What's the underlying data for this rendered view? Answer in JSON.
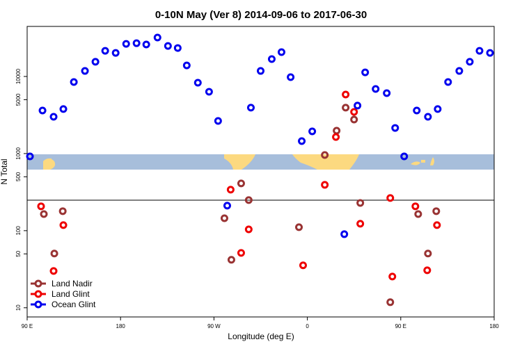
{
  "chart_data": {
    "type": "scatter",
    "title": "0-10N May (Ver 8)   2014-09-06 to 2017-06-30",
    "x_label": "Longitude (deg E)",
    "y_label": "N Total",
    "y_scale": "log",
    "xlim": [
      90,
      540
    ],
    "ylim": [
      7.6,
      44600
    ],
    "xticks": [
      {
        "value": 90,
        "label": "90 E"
      },
      180,
      {
        "value": 270,
        "label": "90 W"
      },
      {
        "value": 360,
        "label": "0"
      },
      {
        "value": 450,
        "label": "90 E"
      },
      {
        "value": 540,
        "label": "180"
      }
    ],
    "yticks": [
      10,
      50,
      100,
      500,
      1000,
      5000,
      10000
    ],
    "legend_position": "bottom-left",
    "series": [
      {
        "name": "Land Nadir",
        "color": "#993333",
        "x": [
          106.1,
          116.2,
          124.3,
          280.1,
          286.8,
          296.2,
          303.5,
          351.9,
          376.8,
          388.2,
          396.9,
          405,
          411,
          439.9,
          466.8,
          476.2,
          484.2
        ],
        "values": [
          164,
          50.5,
          179,
          145,
          41.9,
          410,
          249,
          111,
          959,
          1980,
          3940,
          2760,
          229,
          11.8,
          164,
          50.5,
          179
        ]
      },
      {
        "name": "Land Glint",
        "color": "#ee0000",
        "x": [
          103.4,
          124.9,
          115.5,
          286.1,
          303.5,
          296.2,
          355.9,
          376.8,
          387.5,
          396.9,
          405,
          411,
          439.9,
          441.9,
          464.1,
          484.9,
          475.5
        ],
        "values": [
          207,
          118,
          30,
          340,
          104,
          51.5,
          35.5,
          393,
          1640,
          5830,
          3470,
          123,
          265,
          25.4,
          207,
          118,
          30.6
        ]
      },
      {
        "name": "Ocean Glint",
        "color": "#0000ee",
        "x": [
          92.7,
          104.8,
          115.5,
          124.9,
          135,
          145.7,
          155.8,
          165.2,
          175.3,
          185.4,
          195.4,
          204.8,
          215.6,
          225.7,
          235.1,
          243.8,
          254.5,
          265.3,
          274,
          282.8,
          305.6,
          315,
          325.7,
          335.1,
          343.9,
          354.6,
          364.7,
          395.6,
          408.3,
          415.7,
          425.8,
          436.5,
          444.6,
          453.3,
          465.4,
          476.2,
          485.6,
          495.6,
          506.4,
          516.5,
          525.9,
          536
        ],
        "values": [
          920,
          3620,
          3000,
          3780,
          8470,
          11800,
          15500,
          21500,
          20200,
          26500,
          27000,
          26000,
          32000,
          24900,
          23400,
          13900,
          8300,
          6340,
          2650,
          211,
          3940,
          11800,
          16800,
          20700,
          9800,
          1450,
          1940,
          90,
          4190,
          11300,
          6890,
          6080,
          2150,
          920,
          3620,
          3000,
          3780,
          8470,
          11800,
          15500,
          21500,
          20200
        ]
      }
    ]
  }
}
